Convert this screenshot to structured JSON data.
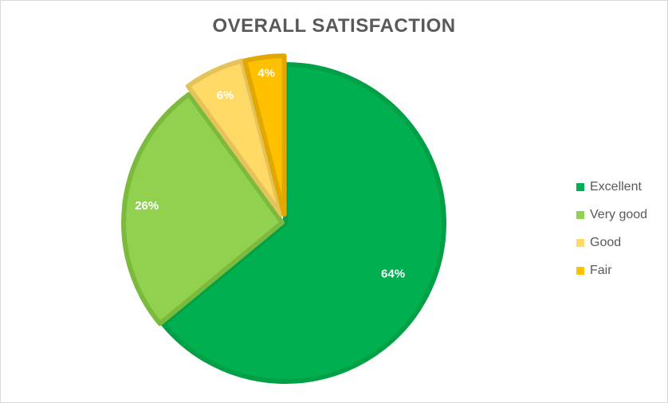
{
  "chart_data": {
    "type": "pie",
    "title": "OVERALL SATISFACTION",
    "categories": [
      "Excellent",
      "Very good",
      "Good",
      "Fair"
    ],
    "values": [
      64,
      26,
      6,
      4
    ],
    "labels": [
      "64%",
      "26%",
      "6%",
      "4%"
    ],
    "colors": [
      "#00b050",
      "#92d050",
      "#ffd966",
      "#ffc000"
    ],
    "border_colors": [
      "#00a046",
      "#7cba3d",
      "#e6c35a",
      "#e0a800"
    ],
    "legend_position": "right"
  }
}
